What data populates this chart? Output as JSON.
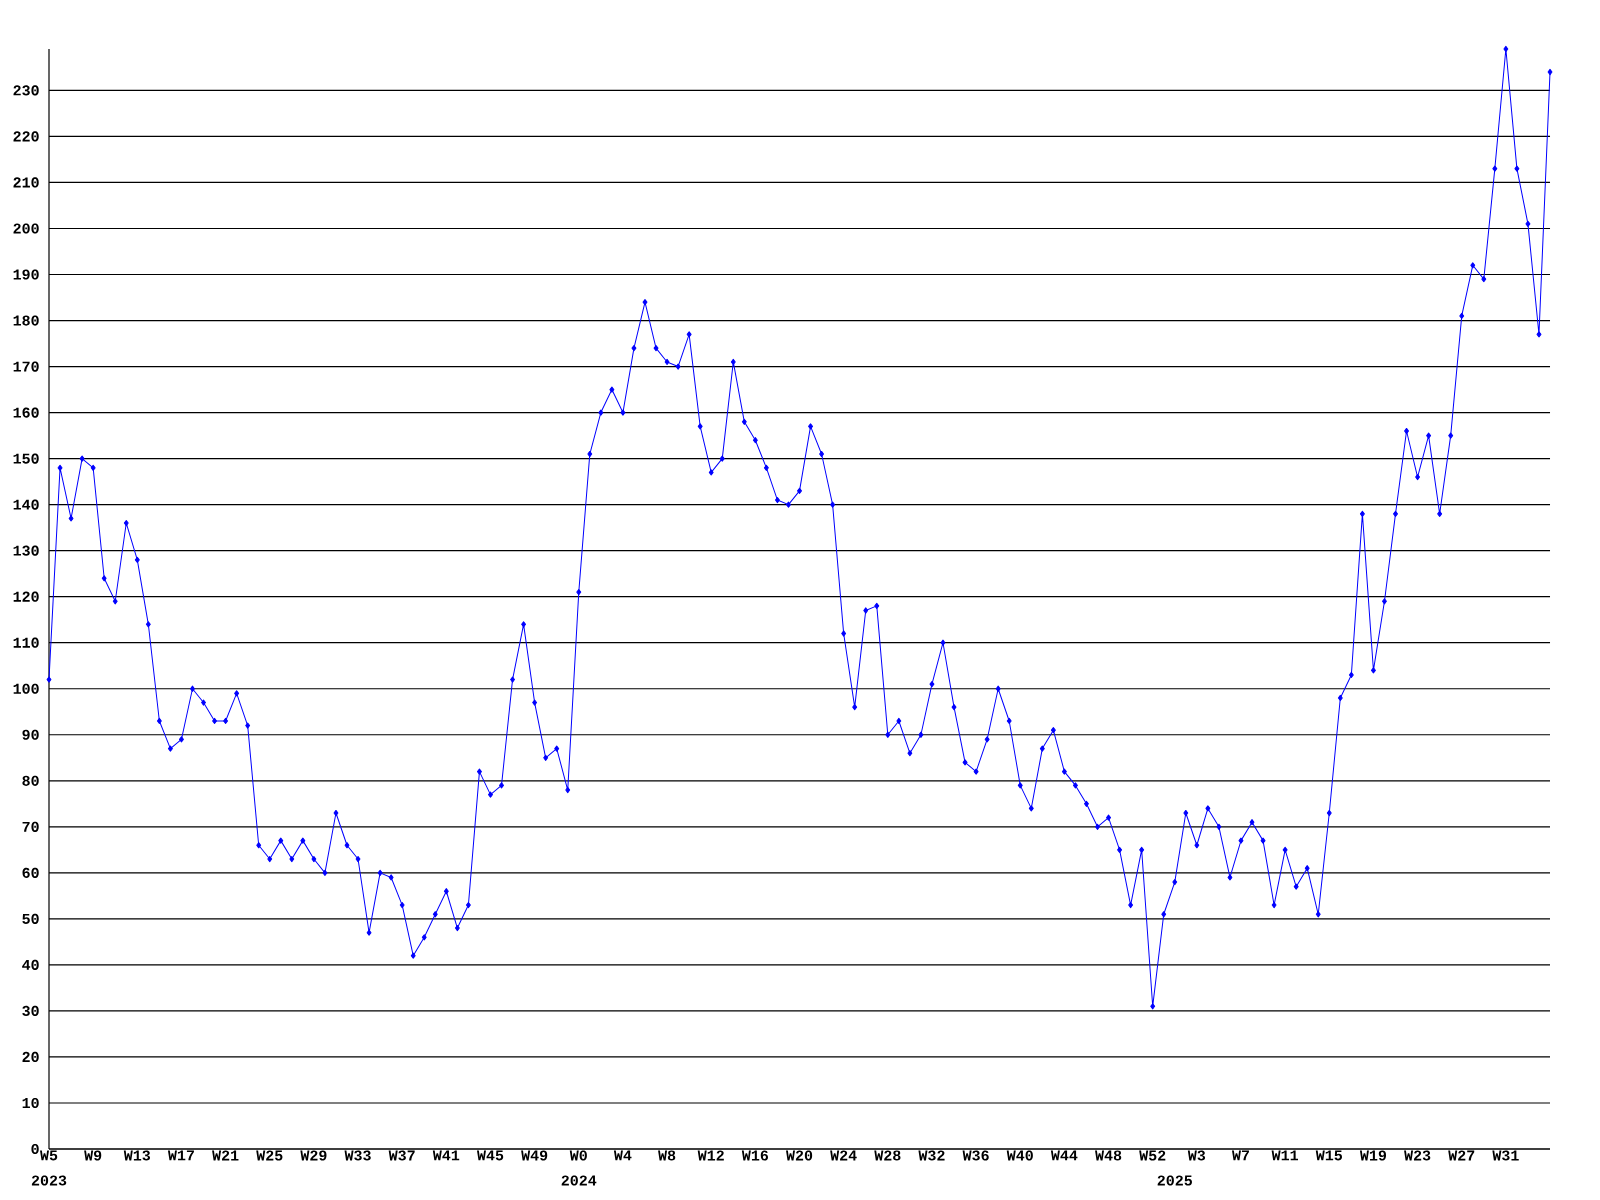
{
  "chart_data": {
    "type": "line",
    "categories": [
      "W5",
      null,
      null,
      null,
      "W9",
      null,
      null,
      null,
      "W13",
      null,
      null,
      null,
      "W17",
      null,
      null,
      null,
      "W21",
      null,
      null,
      null,
      "W25",
      null,
      null,
      null,
      "W29",
      null,
      null,
      null,
      "W33",
      null,
      null,
      null,
      "W37",
      null,
      null,
      null,
      "W41",
      null,
      null,
      null,
      "W45",
      null,
      null,
      null,
      "W49",
      null,
      null,
      null,
      "W0",
      null,
      null,
      null,
      "W4",
      null,
      null,
      null,
      "W8",
      null,
      null,
      null,
      "W12",
      null,
      null,
      null,
      "W16",
      null,
      null,
      null,
      "W20",
      null,
      null,
      null,
      "W24",
      null,
      null,
      null,
      "W28",
      null,
      null,
      null,
      "W32",
      null,
      null,
      null,
      "W36",
      null,
      null,
      null,
      "W40",
      null,
      null,
      null,
      "W44",
      null,
      null,
      null,
      "W48",
      null,
      null,
      null,
      "W52",
      null,
      null,
      null,
      "W3",
      null,
      null,
      null,
      "W7",
      null,
      null,
      null,
      "W11",
      null,
      null,
      null,
      "W15",
      null,
      null,
      null,
      "W19",
      null,
      null,
      null,
      "W23",
      null,
      null,
      null,
      "W27",
      null,
      null,
      null,
      "W31",
      null,
      null,
      null,
      null
    ],
    "values": [
      102,
      148,
      137,
      150,
      148,
      124,
      119,
      136,
      128,
      114,
      93,
      87,
      89,
      100,
      97,
      93,
      93,
      99,
      92,
      66,
      63,
      67,
      63,
      67,
      63,
      60,
      73,
      66,
      63,
      47,
      60,
      59,
      53,
      42,
      46,
      51,
      56,
      48,
      53,
      82,
      77,
      79,
      102,
      114,
      97,
      85,
      87,
      78,
      121,
      151,
      160,
      165,
      160,
      174,
      184,
      174,
      171,
      170,
      177,
      157,
      147,
      150,
      171,
      158,
      154,
      148,
      141,
      140,
      143,
      157,
      151,
      140,
      112,
      96,
      117,
      118,
      90,
      93,
      86,
      90,
      101,
      110,
      96,
      84,
      82,
      89,
      100,
      93,
      79,
      74,
      87,
      91,
      82,
      79,
      75,
      70,
      72,
      65,
      53,
      65,
      31,
      51,
      58,
      73,
      66,
      74,
      70,
      59,
      67,
      71,
      67,
      53,
      65,
      57,
      61,
      51,
      73,
      98,
      103,
      138,
      104,
      119,
      138,
      156,
      146,
      155,
      138,
      155,
      181,
      192,
      189,
      213,
      239,
      213,
      201,
      177,
      234
    ],
    "color": "#0000ff",
    "ylim": [
      0,
      239
    ],
    "yticks": [
      0,
      10,
      20,
      30,
      40,
      50,
      60,
      70,
      80,
      90,
      100,
      110,
      120,
      130,
      140,
      150,
      160,
      170,
      180,
      190,
      200,
      210,
      220,
      230
    ],
    "grid": "y",
    "marker": "diamond",
    "line_style": "solid",
    "annotations": [
      "2023",
      "2024",
      "2025"
    ]
  }
}
